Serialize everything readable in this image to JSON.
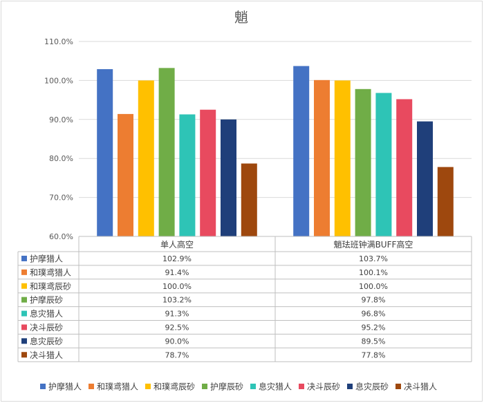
{
  "chart_data": {
    "type": "bar",
    "title": "魈",
    "categories": [
      "单人高空",
      "魈珐班钟满BUFF高空"
    ],
    "ylim": [
      60,
      110
    ],
    "yticks": [
      "60.0%",
      "70.0%",
      "80.0%",
      "90.0%",
      "100.0%",
      "110.0%"
    ],
    "ytick_values": [
      60,
      70,
      80,
      90,
      100,
      110
    ],
    "grid": true,
    "legend_position": "bottom",
    "data_table": true,
    "series": [
      {
        "name": "护摩猎人",
        "values": [
          102.9,
          103.7
        ],
        "labels": [
          "102.9%",
          "103.7%"
        ],
        "color": "#4472C4"
      },
      {
        "name": "和璞鸢猎人",
        "values": [
          91.4,
          100.1
        ],
        "labels": [
          "91.4%",
          "100.1%"
        ],
        "color": "#ED7D31"
      },
      {
        "name": "和璞鸢辰砂",
        "values": [
          100.0,
          100.0
        ],
        "labels": [
          "100.0%",
          "100.0%"
        ],
        "color": "#FFC000"
      },
      {
        "name": "护摩辰砂",
        "values": [
          103.2,
          97.8
        ],
        "labels": [
          "103.2%",
          "97.8%"
        ],
        "color": "#70AD47"
      },
      {
        "name": "息灾猎人",
        "values": [
          91.3,
          96.8
        ],
        "labels": [
          "91.3%",
          "96.8%"
        ],
        "color": "#2EC4B6"
      },
      {
        "name": "决斗辰砂",
        "values": [
          92.5,
          95.2
        ],
        "labels": [
          "92.5%",
          "95.2%"
        ],
        "color": "#E84A5F"
      },
      {
        "name": "息灾辰砂",
        "values": [
          90.0,
          89.5
        ],
        "labels": [
          "90.0%",
          "89.5%"
        ],
        "color": "#1F3F7A"
      },
      {
        "name": "决斗猎人",
        "values": [
          78.7,
          77.8
        ],
        "labels": [
          "78.7%",
          "77.8%"
        ],
        "color": "#9E480E"
      }
    ]
  }
}
